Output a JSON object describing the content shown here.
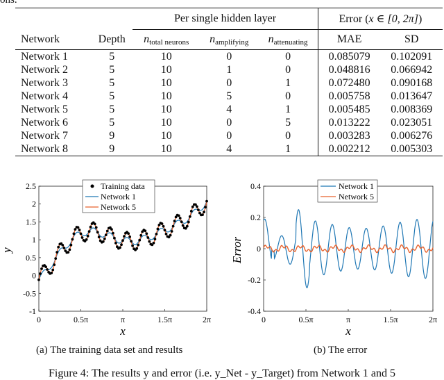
{
  "top_fragment": "ons.",
  "table": {
    "group_headers": {
      "per_layer": "Per single hidden layer",
      "error_prefix": "Error (",
      "error_math": "x ∈ [0, 2π]",
      "error_suffix": ")"
    },
    "headers": {
      "network": "Network",
      "depth": "Depth",
      "n_symbol": "n",
      "total_sub": "total neurons",
      "amplifying_sub": "amplifying",
      "attenuating_sub": "attenuating",
      "mae": "MAE",
      "sd": "SD"
    },
    "rows": [
      {
        "network": "Network 1",
        "depth": "5",
        "total": "10",
        "amplifying": "0",
        "attenuating": "0",
        "mae": "0.085079",
        "sd": "0.102091"
      },
      {
        "network": "Network 2",
        "depth": "5",
        "total": "10",
        "amplifying": "1",
        "attenuating": "0",
        "mae": "0.048816",
        "sd": "0.066942"
      },
      {
        "network": "Network 3",
        "depth": "5",
        "total": "10",
        "amplifying": "0",
        "attenuating": "1",
        "mae": "0.072480",
        "sd": "0.090168"
      },
      {
        "network": "Network 4",
        "depth": "5",
        "total": "10",
        "amplifying": "5",
        "attenuating": "0",
        "mae": "0.005758",
        "sd": "0.013647"
      },
      {
        "network": "Network 5",
        "depth": "5",
        "total": "10",
        "amplifying": "4",
        "attenuating": "1",
        "mae": "0.005485",
        "sd": "0.008369"
      },
      {
        "network": "Network 6",
        "depth": "5",
        "total": "10",
        "amplifying": "0",
        "attenuating": "5",
        "mae": "0.013222",
        "sd": "0.023051"
      },
      {
        "network": "Network 7",
        "depth": "9",
        "total": "10",
        "amplifying": "0",
        "attenuating": "0",
        "mae": "0.003283",
        "sd": "0.006276"
      },
      {
        "network": "Network 8",
        "depth": "9",
        "total": "10",
        "amplifying": "4",
        "attenuating": "1",
        "mae": "0.002212",
        "sd": "0.005303"
      }
    ]
  },
  "chart_data": [
    {
      "type": "scatter+line",
      "xlabel": "x",
      "ylabel": "y",
      "xlim": [
        0,
        6.2832
      ],
      "ylim": [
        -1,
        2.5
      ],
      "xticks": [
        0,
        1.5708,
        3.1416,
        4.7124,
        6.2832
      ],
      "xtick_labels": [
        "0",
        "0.5π",
        "π",
        "1.5π",
        "2π"
      ],
      "yticks": [
        -1,
        -0.5,
        0,
        0.5,
        1,
        1.5,
        2,
        2.5
      ],
      "ytick_labels": [
        "-1",
        "-0.5",
        "0",
        "0.5",
        "1",
        "1.5",
        "2",
        "2.5"
      ],
      "legend_position": "top-left",
      "series": [
        {
          "name": "Training data",
          "color": "#000000",
          "kind": "markers",
          "formula": "0.5*sin(x)+0.35*x+0.25*sin(10x)"
        },
        {
          "name": "Network 1",
          "color": "#1f77b4",
          "kind": "line",
          "formula": "0.5*sin(x)+0.35*x+0.1*sin(10x)"
        },
        {
          "name": "Network 5",
          "color": "#e8622c",
          "kind": "line",
          "formula": "0.5*sin(x)+0.35*x+0.25*sin(10x)"
        }
      ]
    },
    {
      "type": "line",
      "xlabel": "x",
      "ylabel": "Error",
      "xlim": [
        0,
        6.2832
      ],
      "ylim": [
        -0.4,
        0.4
      ],
      "xticks": [
        0,
        1.5708,
        3.1416,
        4.7124,
        6.2832
      ],
      "xtick_labels": [
        "0",
        "0.5π",
        "π",
        "1.5π",
        "2π"
      ],
      "yticks": [
        -0.4,
        -0.2,
        0,
        0.2,
        0.4
      ],
      "ytick_labels": [
        "-0.4",
        "-0.2",
        "0",
        "0.2",
        "0.4"
      ],
      "legend_position": "top-center",
      "series": [
        {
          "name": "Network 1",
          "color": "#1f77b4",
          "kind": "line",
          "formula": "error amplitude grows ~0.05 to 0.25 near x=1.5, stays ~0.15-0.2"
        },
        {
          "name": "Network 5",
          "color": "#e8622c",
          "kind": "line",
          "formula": "error near 0, amplitude < 0.03"
        }
      ]
    }
  ],
  "captions": {
    "a": "(a) The training data set and results",
    "b": "(b) The error",
    "figure": "Figure 4: The results y and error (i.e. y_Net - y_Target) from Network 1 and 5"
  }
}
